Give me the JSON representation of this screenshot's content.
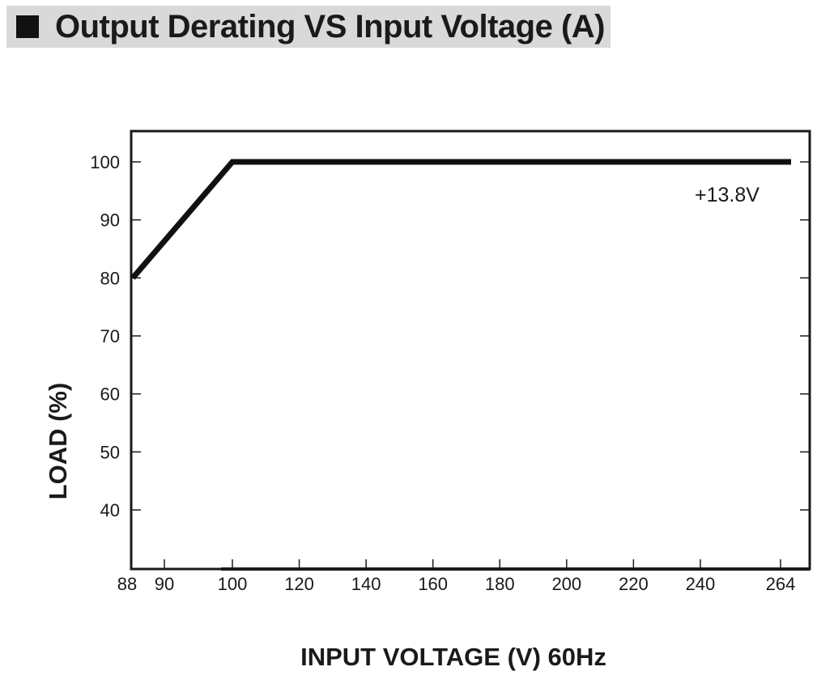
{
  "chart_data": {
    "type": "line",
    "title": "Output Derating VS Input Voltage (A)",
    "xlabel": "INPUT VOLTAGE (V) 60Hz",
    "ylabel": "LOAD (%)",
    "x_ticks": [
      88,
      90,
      100,
      120,
      140,
      160,
      180,
      200,
      220,
      240,
      264
    ],
    "y_ticks": [
      40,
      50,
      60,
      70,
      80,
      90,
      100
    ],
    "xlim": [
      88,
      264
    ],
    "ylim": [
      30,
      105
    ],
    "grid": false,
    "series": [
      {
        "name": "+13.8V",
        "x": [
          88,
          100,
          264
        ],
        "y": [
          80,
          100,
          100
        ]
      }
    ]
  }
}
